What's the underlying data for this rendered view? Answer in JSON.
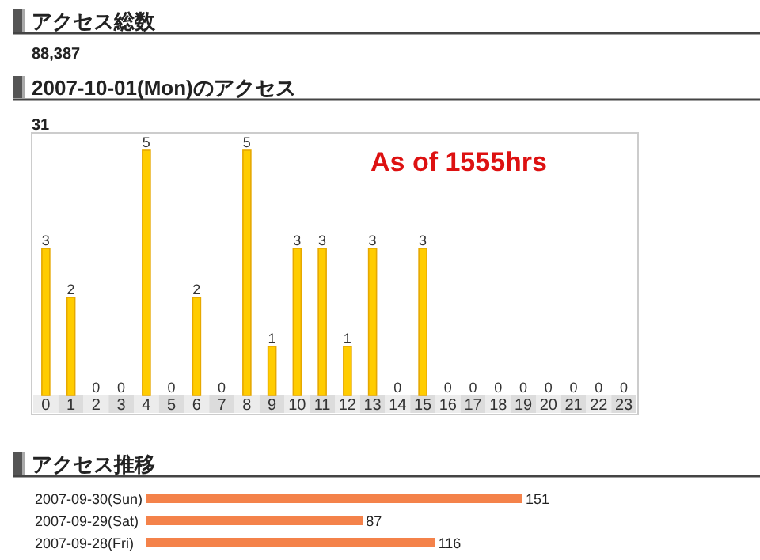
{
  "chart_data": [
    {
      "type": "other",
      "title": "アクセス総数",
      "annotations": [
        "88,387"
      ]
    },
    {
      "type": "bar",
      "title": "2007-10-01(Mon)のアクセス",
      "subtitle": "31",
      "annotations": [
        "As of 1555hrs"
      ],
      "categories": [
        "0",
        "1",
        "2",
        "3",
        "4",
        "5",
        "6",
        "7",
        "8",
        "9",
        "10",
        "11",
        "12",
        "13",
        "14",
        "15",
        "16",
        "17",
        "18",
        "19",
        "20",
        "21",
        "22",
        "23"
      ],
      "values": [
        3,
        2,
        0,
        0,
        5,
        0,
        2,
        0,
        5,
        1,
        3,
        3,
        1,
        3,
        0,
        3,
        0,
        0,
        0,
        0,
        0,
        0,
        0,
        0
      ],
      "color": "#ffcc00",
      "data_labels": true,
      "tick_labels": "x"
    },
    {
      "type": "bar",
      "orientation": "horizontal",
      "title": "アクセス推移",
      "categories": [
        "2007-09-30(Sun)",
        "2007-09-29(Sat)",
        "2007-09-28(Fri)"
      ],
      "values": [
        151,
        87,
        116
      ],
      "color": "#f4824a",
      "data_labels": true,
      "tick_labels": "y"
    }
  ]
}
